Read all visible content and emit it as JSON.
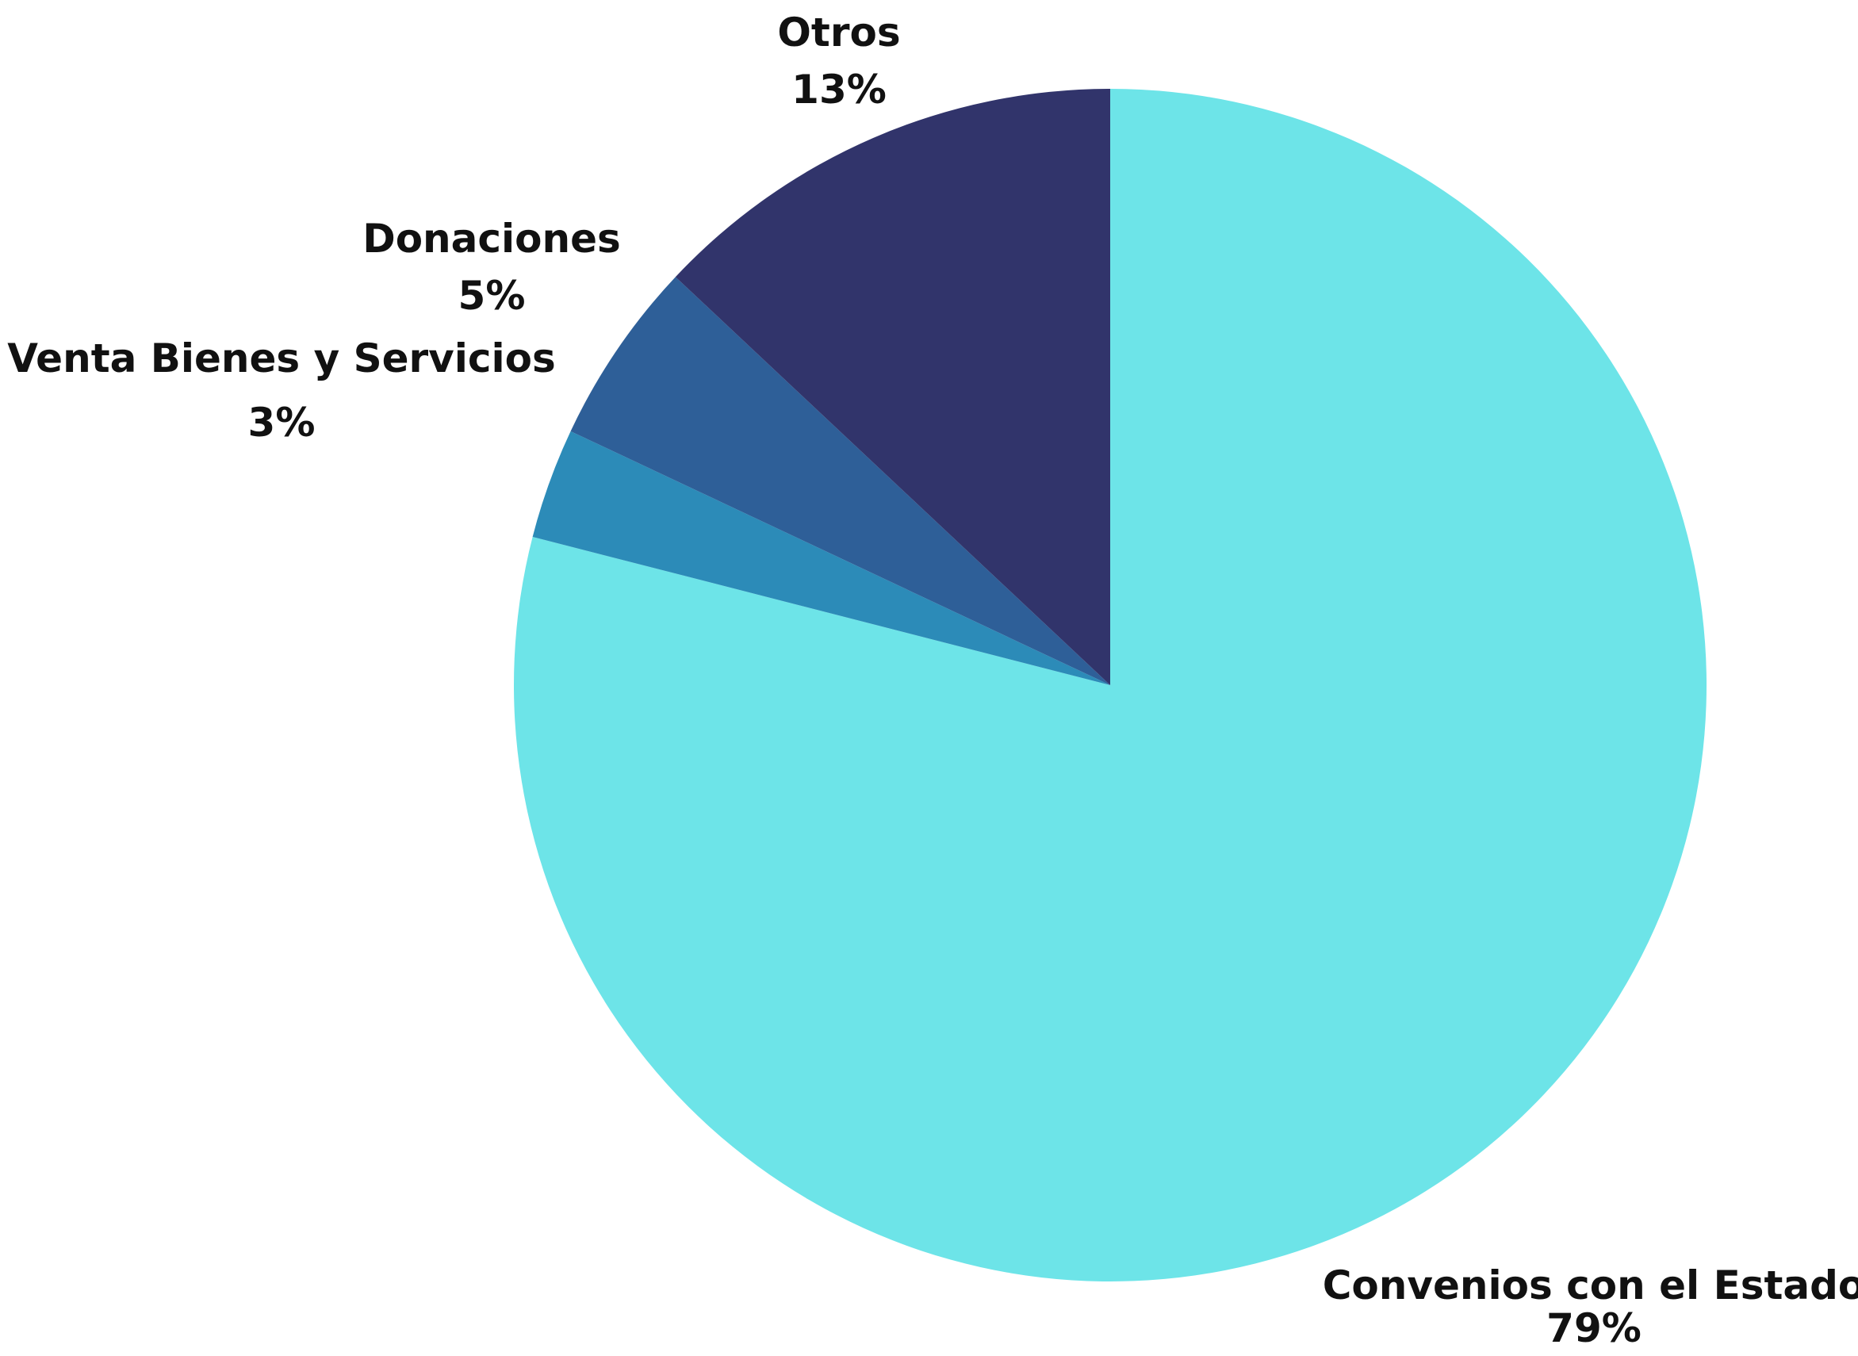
{
  "chart_data": {
    "type": "pie",
    "title": "",
    "start_angle_deg": 90,
    "direction": "clockwise",
    "slices": [
      {
        "label": "Convenios con el Estado",
        "value": 79,
        "value_label": "79%",
        "color": "#6DE4E8"
      },
      {
        "label": "Venta Bienes y Servicios",
        "value": 3,
        "value_label": "3%",
        "color": "#2C8BB8"
      },
      {
        "label": "Donaciones",
        "value": 5,
        "value_label": "5%",
        "color": "#2E5F98"
      },
      {
        "label": "Otros",
        "value": 13,
        "value_label": "13%",
        "color": "#31346B"
      }
    ]
  }
}
